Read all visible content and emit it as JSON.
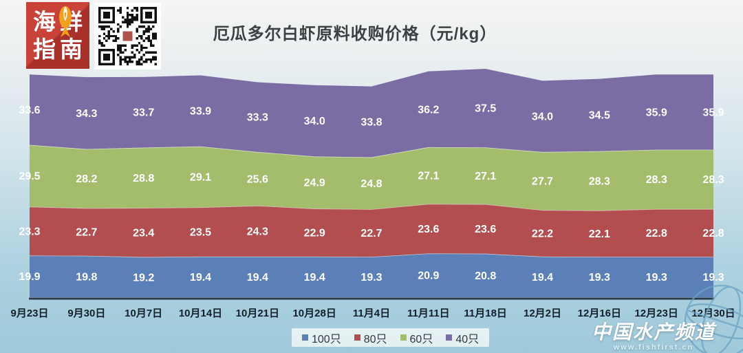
{
  "header": {
    "title": "厄瓜多尔白虾原料收购价格（元/kg）",
    "logo": {
      "line1": "海鲜",
      "line2": "指南",
      "bg": "#c8423a",
      "bg_dark": "#a93129",
      "fish_color": "#f0a01d"
    },
    "icons": {
      "logo": "seafood-guide-logo",
      "qr": "qr-code",
      "fish": "fish"
    }
  },
  "watermark": {
    "brand": "中国水产频道",
    "url": "www.fishfirst.cn",
    "icon": "globe"
  },
  "chart_data": {
    "type": "area",
    "stacked": true,
    "title": "厄瓜多尔白虾原料收购价格（元/kg）",
    "categories": [
      "9月23日",
      "9月30日",
      "10月7日",
      "10月14日",
      "10月21日",
      "10月28日",
      "11月4日",
      "11月11日",
      "11月18日",
      "12月2日",
      "12月16日",
      "12月23日",
      "12月30日"
    ],
    "series": [
      {
        "name": "100只",
        "color": "#5b80b8",
        "values": [
          19.9,
          19.8,
          19.2,
          19.4,
          19.4,
          19.4,
          19.3,
          20.9,
          20.8,
          19.4,
          19.3,
          19.3,
          19.3
        ]
      },
      {
        "name": "80只",
        "color": "#b34e50",
        "values": [
          23.3,
          22.7,
          23.4,
          23.5,
          24.3,
          22.9,
          22.7,
          23.6,
          23.6,
          22.2,
          22.1,
          22.8,
          22.8
        ]
      },
      {
        "name": "60只",
        "color": "#a4bd6c",
        "values": [
          29.5,
          28.2,
          28.8,
          29.1,
          25.6,
          24.9,
          24.8,
          27.1,
          27.1,
          27.7,
          28.3,
          28.3,
          28.3
        ]
      },
      {
        "name": "40只",
        "color": "#7b6ca3",
        "values": [
          33.6,
          34.3,
          33.7,
          33.9,
          33.3,
          34.0,
          33.8,
          36.2,
          37.5,
          34.0,
          34.5,
          35.9,
          35.9
        ]
      }
    ],
    "legend_position": "bottom",
    "ylim": [
      0,
      109
    ],
    "grid": false,
    "value_label_color": "#ffffff",
    "axis_line_color": "#2c3b49",
    "tick_label_color": "#121f2b",
    "band_separator_color": "rgba(255,255,255,0.55)"
  }
}
